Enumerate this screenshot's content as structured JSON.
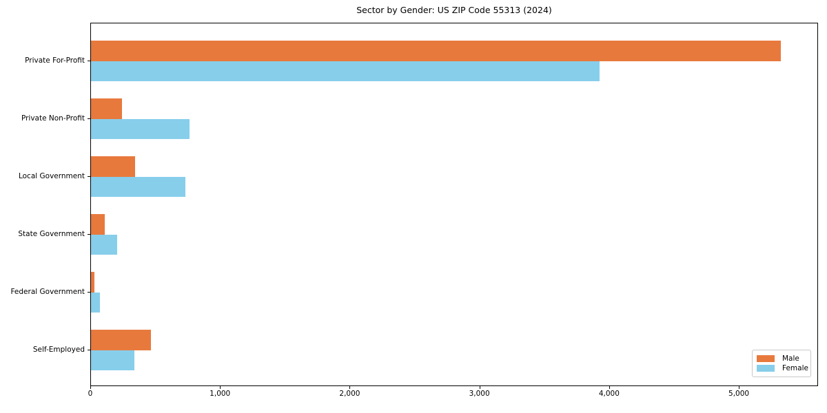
{
  "chart_data": {
    "type": "bar",
    "orientation": "horizontal",
    "title": "Sector by Gender: US ZIP Code 55313 (2024)",
    "categories": [
      "Private For-Profit",
      "Private Non-Profit",
      "Local Government",
      "State Government",
      "Federal Government",
      "Self-Employed"
    ],
    "series": [
      {
        "name": "Male",
        "color": "#E8793D",
        "values": [
          5320,
          240,
          340,
          105,
          27,
          460
        ]
      },
      {
        "name": "Female",
        "color": "#87CEEB",
        "values": [
          3920,
          760,
          730,
          200,
          70,
          335
        ]
      }
    ],
    "xlabel": "",
    "ylabel": "",
    "xlim": [
      0,
      5600
    ],
    "xticks": [
      0,
      1000,
      2000,
      3000,
      4000,
      5000
    ],
    "xtick_labels": [
      "0",
      "1,000",
      "2,000",
      "3,000",
      "4,000",
      "5,000"
    ],
    "grid": false,
    "legend_position": "lower right"
  }
}
